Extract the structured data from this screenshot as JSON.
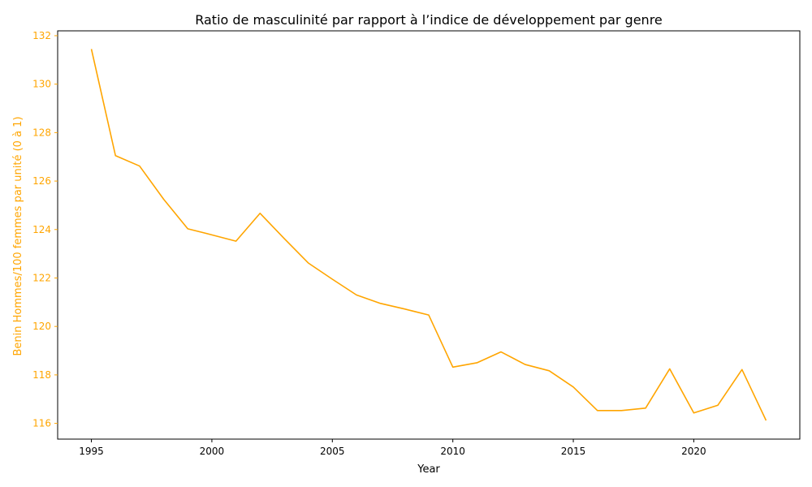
{
  "chart_data": {
    "type": "line",
    "title": "Ratio de masculinité par rapport à l’indice de développement par genre",
    "xlabel": "Year",
    "ylabel": "Benin Hommes/100 femmes par unité (0 à 1)",
    "xlim": [
      1993.6,
      2024.4
    ],
    "ylim": [
      115.35,
      132.2
    ],
    "x_ticks": [
      1995,
      2000,
      2005,
      2010,
      2015,
      2020
    ],
    "y_ticks": [
      116,
      118,
      120,
      122,
      124,
      126,
      128,
      130,
      132
    ],
    "grid": false,
    "series": [
      {
        "color": "#ffa500",
        "x": [
          1995,
          1996,
          1997,
          1998,
          1999,
          2000,
          2001,
          2002,
          2003,
          2004,
          2005,
          2006,
          2007,
          2008,
          2009,
          2010,
          2011,
          2012,
          2013,
          2014,
          2015,
          2016,
          2017,
          2018,
          2019,
          2020,
          2021,
          2022,
          2023
        ],
        "y": [
          131.45,
          127.05,
          126.62,
          125.25,
          124.03,
          123.78,
          123.52,
          124.67,
          123.63,
          122.62,
          121.95,
          121.3,
          120.95,
          120.72,
          120.47,
          118.32,
          118.5,
          118.95,
          118.43,
          118.17,
          117.5,
          116.53,
          116.53,
          116.63,
          118.25,
          116.43,
          116.75,
          118.22,
          116.12
        ]
      }
    ],
    "axis_color": "#ffa500"
  }
}
